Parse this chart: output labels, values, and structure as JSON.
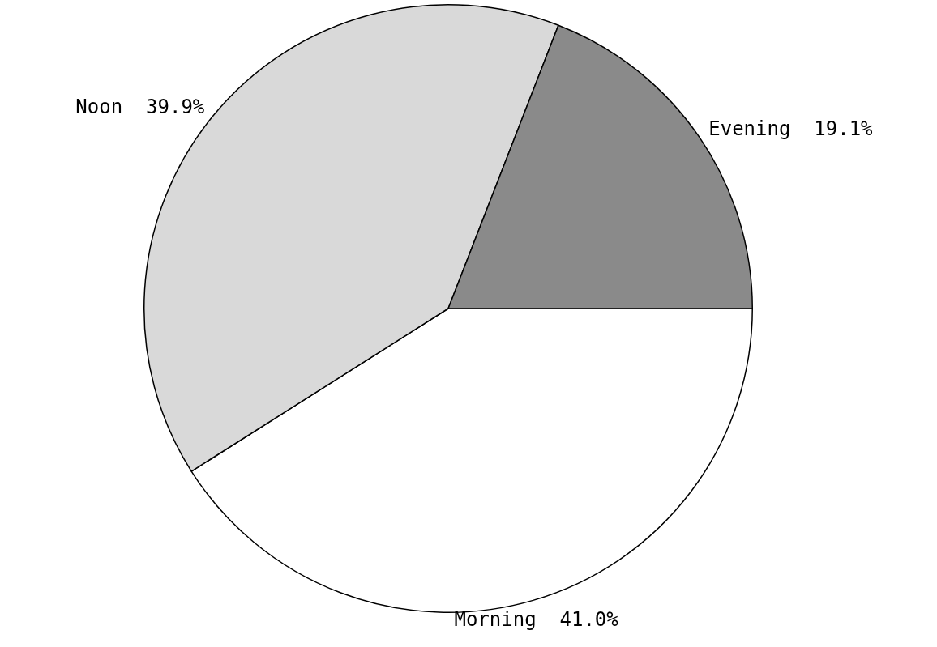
{
  "chart_data": {
    "type": "pie",
    "categories": [
      "Morning",
      "Noon",
      "Evening"
    ],
    "values": [
      41.0,
      39.9,
      19.1
    ],
    "colors": [
      "#ffffff",
      "#d9d9d9",
      "#8a8a8a"
    ],
    "value_labels": [
      "41.0%",
      "39.9%",
      "19.1%"
    ],
    "legend": false
  }
}
